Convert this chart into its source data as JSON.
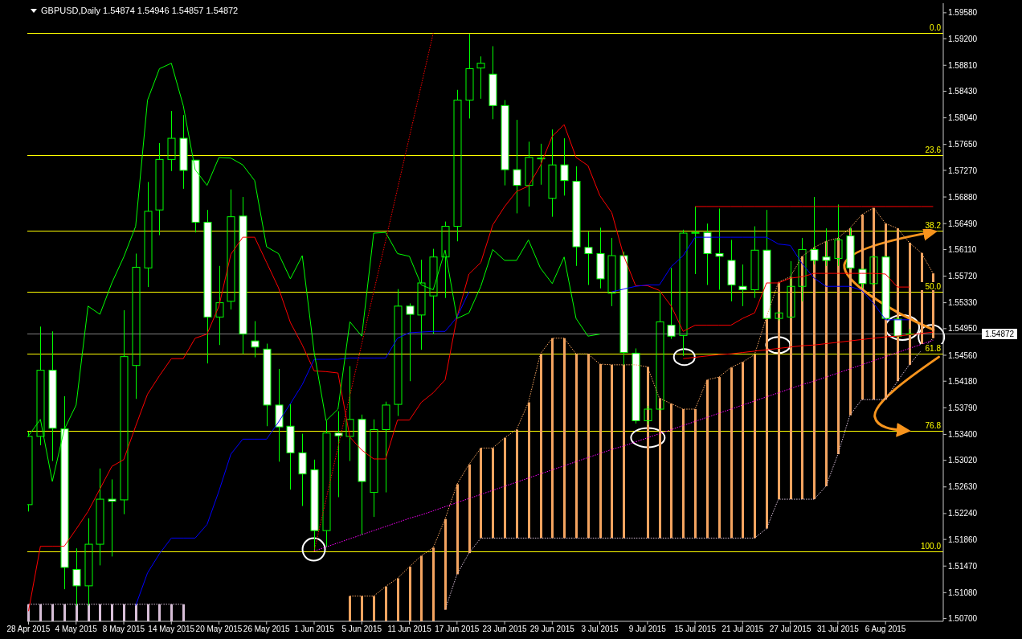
{
  "chart_data": {
    "type": "candlestick",
    "title": "GBPUSD,Daily 1.54874 1.54946 1.54857 1.54872",
    "color": "#00ff00",
    "categories": [
      "28 Apr 2015",
      null,
      null,
      null,
      "4 May 2015",
      null,
      null,
      null,
      "8 May 2015",
      null,
      null,
      null,
      "14 May 2015",
      null,
      null,
      null,
      "20 May 2015",
      null,
      null,
      null,
      "26 May 2015",
      null,
      null,
      null,
      "1 Jun 2015",
      null,
      null,
      null,
      "5 Jun 2015",
      null,
      null,
      null,
      "11 Jun 2015",
      null,
      null,
      null,
      "17 Jun 2015",
      null,
      null,
      null,
      "23 Jun 2015",
      null,
      null,
      null,
      "29 Jun 2015",
      null,
      null,
      null,
      "3 Jul 2015",
      null,
      null,
      null,
      "9 Jul 2015",
      null,
      null,
      null,
      "15 Jul 2015",
      null,
      null,
      null,
      "21 Jul 2015",
      null,
      null,
      null,
      "27 Jul 2015",
      null,
      null,
      null,
      "31 Jul 2015",
      null,
      null,
      null,
      "6 Aug 2015",
      null,
      null,
      null,
      null
    ],
    "ohlc": [
      [
        1.5237,
        1.5344,
        1.5227,
        1.5337
      ],
      [
        1.5337,
        1.5498,
        1.5324,
        1.5434
      ],
      [
        1.5434,
        1.5491,
        1.5301,
        1.5349
      ],
      [
        1.5348,
        1.5396,
        1.5113,
        1.5145
      ],
      [
        1.5142,
        1.5173,
        1.5089,
        1.5118
      ],
      [
        1.5118,
        1.5217,
        1.5089,
        1.5179
      ],
      [
        1.5179,
        1.529,
        1.5148,
        1.5245
      ],
      [
        1.5245,
        1.5274,
        1.5161,
        1.5242
      ],
      [
        1.5244,
        1.5522,
        1.5223,
        1.5454
      ],
      [
        1.5441,
        1.5605,
        1.5392,
        1.5585
      ],
      [
        1.5584,
        1.571,
        1.5556,
        1.5667
      ],
      [
        1.5669,
        1.5767,
        1.5632,
        1.5743
      ],
      [
        1.5743,
        1.5814,
        1.5726,
        1.5774
      ],
      [
        1.5774,
        1.5808,
        1.57,
        1.5727
      ],
      [
        1.5742,
        1.5743,
        1.5636,
        1.5651
      ],
      [
        1.5651,
        1.5669,
        1.5444,
        1.5512
      ],
      [
        1.5512,
        1.5587,
        1.5471,
        1.5533
      ],
      [
        1.5535,
        1.5699,
        1.5523,
        1.5659
      ],
      [
        1.566,
        1.5688,
        1.5458,
        1.5487
      ],
      [
        1.5477,
        1.5506,
        1.5453,
        1.5468
      ],
      [
        1.5465,
        1.5473,
        1.5352,
        1.5383
      ],
      [
        1.5383,
        1.5436,
        1.53,
        1.5351
      ],
      [
        1.5352,
        1.5385,
        1.5259,
        1.5313
      ],
      [
        1.5313,
        1.5341,
        1.5235,
        1.5282
      ],
      [
        1.5288,
        1.5303,
        1.5169,
        1.5199
      ],
      [
        1.5199,
        1.536,
        1.5175,
        1.5342
      ],
      [
        1.5342,
        1.5374,
        1.5248,
        1.5338
      ],
      [
        1.5337,
        1.544,
        1.5301,
        1.5362
      ],
      [
        1.5362,
        1.5369,
        1.5193,
        1.5271
      ],
      [
        1.5255,
        1.5362,
        1.5219,
        1.5347
      ],
      [
        1.5347,
        1.5388,
        1.5255,
        1.5383
      ],
      [
        1.5384,
        1.5553,
        1.5367,
        1.5528
      ],
      [
        1.5528,
        1.5532,
        1.5418,
        1.5516
      ],
      [
        1.5515,
        1.5596,
        1.5464,
        1.5562
      ],
      [
        1.5543,
        1.5612,
        1.5487,
        1.56
      ],
      [
        1.56,
        1.5652,
        1.554,
        1.5645
      ],
      [
        1.5645,
        1.5845,
        1.5623,
        1.583
      ],
      [
        1.583,
        1.5927,
        1.5803,
        1.5876
      ],
      [
        1.5877,
        1.5894,
        1.5832,
        1.5884
      ],
      [
        1.5868,
        1.5909,
        1.5802,
        1.5822
      ],
      [
        1.5822,
        1.583,
        1.5705,
        1.5728
      ],
      [
        1.5728,
        1.5801,
        1.5664,
        1.5705
      ],
      [
        1.5705,
        1.5769,
        1.5674,
        1.5746
      ],
      [
        1.5745,
        1.5766,
        1.5706,
        1.5745
      ],
      [
        1.5686,
        1.5787,
        1.5659,
        1.5735
      ],
      [
        1.5735,
        1.5774,
        1.569,
        1.5712
      ],
      [
        1.5711,
        1.5733,
        1.5587,
        1.5615
      ],
      [
        1.5614,
        1.5637,
        1.5559,
        1.5605
      ],
      [
        1.5605,
        1.5643,
        1.5554,
        1.5568
      ],
      [
        1.5547,
        1.5628,
        1.5528,
        1.5602
      ],
      [
        1.5602,
        1.5608,
        1.5441,
        1.546
      ],
      [
        1.5459,
        1.5466,
        1.5356,
        1.536
      ],
      [
        1.536,
        1.5382,
        1.5354,
        1.5377
      ],
      [
        1.5377,
        1.5549,
        1.5375,
        1.5505
      ],
      [
        1.55,
        1.5584,
        1.548,
        1.5484
      ],
      [
        1.5485,
        1.564,
        1.5455,
        1.5635
      ],
      [
        1.5635,
        1.5674,
        1.5575,
        1.5636
      ],
      [
        1.5636,
        1.5649,
        1.5559,
        1.5605
      ],
      [
        1.5605,
        1.5671,
        1.5552,
        1.5601
      ],
      [
        1.5595,
        1.5625,
        1.5535,
        1.5559
      ],
      [
        1.5557,
        1.5589,
        1.5528,
        1.5552
      ],
      [
        1.5552,
        1.5645,
        1.554,
        1.561
      ],
      [
        1.561,
        1.5669,
        1.5508,
        1.551
      ],
      [
        1.551,
        1.552,
        1.5507,
        1.5518
      ],
      [
        1.5512,
        1.5594,
        1.551,
        1.5557
      ],
      [
        1.5557,
        1.5628,
        1.5535,
        1.5611
      ],
      [
        1.5611,
        1.5688,
        1.5589,
        1.5595
      ],
      [
        1.56,
        1.5642,
        1.5587,
        1.5595
      ],
      [
        1.5598,
        1.5677,
        1.5587,
        1.5625
      ],
      [
        1.5631,
        1.5643,
        1.5582,
        1.5584
      ],
      [
        1.5582,
        1.5583,
        1.5555,
        1.5561
      ],
      [
        1.5561,
        1.5602,
        1.5559,
        1.56
      ],
      [
        1.56,
        1.5602,
        1.5508,
        1.551
      ],
      [
        1.5509,
        1.5512,
        1.5482,
        1.5484
      ],
      [
        1.54874,
        1.54946,
        1.54857,
        1.54872
      ],
      null,
      null
    ],
    "ylim": [
      1.5066,
      1.5972
    ],
    "yticks": [
      {
        "value": 1.5958,
        "label": "1.59580"
      },
      {
        "value": 1.592,
        "label": "1.59200"
      },
      {
        "value": 1.5881,
        "label": "1.58810"
      },
      {
        "value": 1.5843,
        "label": "1.58430"
      },
      {
        "value": 1.5804,
        "label": "1.58040"
      },
      {
        "value": 1.5765,
        "label": "1.57650"
      },
      {
        "value": 1.5727,
        "label": "1.57270"
      },
      {
        "value": 1.5688,
        "label": "1.56880"
      },
      {
        "value": 1.5649,
        "label": "1.56490"
      },
      {
        "value": 1.5611,
        "label": "1.56110"
      },
      {
        "value": 1.5572,
        "label": "1.55720"
      },
      {
        "value": 1.5533,
        "label": "1.55330"
      },
      {
        "value": 1.5495,
        "label": "1.54950"
      },
      {
        "value": 1.5456,
        "label": "1.54560"
      },
      {
        "value": 1.5418,
        "label": "1.54180"
      },
      {
        "value": 1.5379,
        "label": "1.53790"
      },
      {
        "value": 1.534,
        "label": "1.53400"
      },
      {
        "value": 1.5302,
        "label": "1.53020"
      },
      {
        "value": 1.5263,
        "label": "1.52630"
      },
      {
        "value": 1.5224,
        "label": "1.52240"
      },
      {
        "value": 1.5186,
        "label": "1.51860"
      },
      {
        "value": 1.5147,
        "label": "1.51470"
      },
      {
        "value": 1.5108,
        "label": "1.51080"
      },
      {
        "value": 1.507,
        "label": "1.50700"
      }
    ],
    "series": [
      {
        "type": "bar",
        "base": [
          1.5066,
          1.5066,
          1.5066,
          1.5066,
          1.5066,
          1.5066,
          1.5066,
          1.5066,
          1.5066,
          1.5066,
          1.5066,
          1.5066,
          1.5066,
          1.5066,
          null,
          null,
          null,
          null,
          null,
          null,
          null,
          null,
          null,
          null,
          null,
          null,
          null,
          1.5066,
          1.5066,
          1.5066,
          1.5066,
          1.5066,
          1.5066,
          1.5066,
          1.5066,
          1.5083,
          1.5135,
          1.5166,
          1.5188,
          1.5188,
          1.5188,
          1.5188,
          1.5188,
          1.5188,
          1.5188,
          1.5188,
          1.5188,
          1.5188,
          1.5188,
          1.5188,
          1.5188,
          null,
          1.5188,
          1.5188,
          1.5188,
          1.5188,
          1.5188,
          1.5188,
          1.5188,
          1.5188,
          1.5188,
          1.5188,
          1.5202,
          1.5245,
          1.5245,
          1.5245,
          1.5245,
          1.5264,
          1.5311,
          1.5368,
          1.5391,
          1.5391,
          1.5391,
          1.5418,
          1.5442,
          1.5463,
          1.5481
        ],
        "values": [
          0.0025,
          0.0025,
          0.0025,
          0.0025,
          0.0025,
          0.0025,
          0.0025,
          0.0025,
          0.0025,
          0.0025,
          0.0025,
          0.0025,
          0.0025,
          0.0025,
          null,
          null,
          null,
          null,
          null,
          null,
          null,
          null,
          null,
          null,
          null,
          null,
          null,
          0.0037,
          0.0037,
          0.0037,
          0.0051,
          0.0063,
          0.008,
          0.0096,
          0.0108,
          0.0133,
          0.0132,
          0.013,
          0.0132,
          0.0132,
          0.0147,
          0.0159,
          0.0199,
          0.027,
          0.0293,
          0.0293,
          0.027,
          0.027,
          0.0255,
          0.0254,
          0.0254,
          null,
          0.0251,
          0.0205,
          0.0197,
          0.0189,
          0.0189,
          0.0232,
          0.0236,
          0.025,
          0.0258,
          0.0269,
          0.031,
          0.0318,
          0.0326,
          0.0356,
          0.0369,
          0.0359,
          0.0317,
          0.0274,
          0.0271,
          0.0281,
          0.0258,
          0.0224,
          0.0179,
          0.0143,
          0.0095
        ],
        "colors": [
          "#d8bfd8",
          "#d8bfd8",
          "#d8bfd8",
          "#d8bfd8",
          "#d8bfd8",
          "#d8bfd8",
          "#d8bfd8",
          "#d8bfd8",
          "#d8bfd8",
          "#d8bfd8",
          "#d8bfd8",
          "#d8bfd8",
          "#d8bfd8",
          "#d8bfd8",
          null,
          null,
          null,
          null,
          null,
          null,
          null,
          null,
          null,
          null,
          null,
          null,
          null,
          "#f4a460",
          "#f4a460",
          "#f4a460",
          "#f4a460",
          "#f4a460",
          "#f4a460",
          "#f4a460",
          "#f4a460",
          "#f4a460",
          "#f4a460",
          "#f4a460",
          "#f4a460",
          "#f4a460",
          "#f4a460",
          "#f4a460",
          "#f4a460",
          "#f4a460",
          "#f4a460",
          "#f4a460",
          "#f4a460",
          "#f4a460",
          "#f4a460",
          "#f4a460",
          "#f4a460",
          null,
          "#f4a460",
          "#f4a460",
          "#f4a460",
          "#f4a460",
          "#f4a460",
          "#f4a460",
          "#f4a460",
          "#f4a460",
          "#f4a460",
          "#f4a460",
          "#f4a460",
          "#f4a460",
          "#f4a460",
          "#f4a460",
          "#f4a460",
          "#f4a460",
          "#f4a460",
          "#f4a460",
          "#f4a460",
          "#f4a460",
          "#f4a460",
          "#f4a460",
          "#f4a460",
          "#f4a460",
          "#f4a460"
        ]
      },
      {
        "type": "line",
        "color": "#f4a460",
        "line_style": "dotted",
        "values": [
          null,
          null,
          null,
          null,
          null,
          null,
          null,
          null,
          null,
          null,
          null,
          null,
          null,
          null,
          null,
          null,
          null,
          null,
          null,
          null,
          null,
          null,
          null,
          null,
          null,
          null,
          null,
          1.5103,
          1.5103,
          1.5103,
          1.5117,
          1.5129,
          1.5146,
          1.5162,
          1.5174,
          1.5216,
          1.5267,
          1.5296,
          1.532,
          1.532,
          1.5335,
          1.5347,
          1.5387,
          1.5458,
          1.5481,
          1.5481,
          1.5458,
          1.5458,
          1.5443,
          1.5442,
          1.5442,
          1.5442,
          1.5439,
          1.5393,
          1.5385,
          1.5377,
          1.5377,
          1.542,
          1.5424,
          1.5438,
          1.5446,
          1.5457,
          1.5512,
          1.5563,
          1.5571,
          1.5601,
          1.5614,
          1.5623,
          1.5628,
          1.5642,
          1.5662,
          1.5672,
          1.5649,
          1.5642,
          1.5621,
          1.5606,
          1.5576
        ]
      },
      {
        "type": "line",
        "color": "#d8bfd8",
        "line_style": "dotted",
        "values": [
          1.5091,
          1.5091,
          1.5091,
          1.5091,
          1.5091,
          1.5091,
          1.5091,
          1.5091,
          1.5091,
          1.5091,
          1.5091,
          1.5091,
          1.5091,
          1.5091,
          null,
          null,
          null,
          null,
          null,
          null,
          null,
          null,
          null,
          null,
          null,
          null,
          null,
          null,
          null,
          null,
          null,
          null,
          null,
          null,
          null,
          1.5083,
          1.5135,
          1.5166,
          1.5188,
          1.5188,
          1.5188,
          1.5188,
          1.5188,
          1.5188,
          1.5188,
          1.5188,
          1.5188,
          1.5188,
          1.5188,
          1.5188,
          1.5188,
          1.5188,
          1.5188,
          1.5188,
          1.5188,
          1.5188,
          1.5188,
          1.5188,
          1.5188,
          1.5188,
          1.5188,
          1.5188,
          1.5202,
          1.5245,
          1.5245,
          1.5245,
          1.5245,
          1.5264,
          1.5311,
          1.5368,
          1.5391,
          1.5391,
          1.5391,
          1.5418,
          1.5442,
          1.5463,
          1.5481
        ]
      },
      {
        "type": "line",
        "color": "#ff0000",
        "values": [
          1.5081,
          1.5176,
          1.5176,
          1.5176,
          1.5201,
          1.5227,
          1.526,
          1.5293,
          1.5303,
          1.5352,
          1.5399,
          1.5426,
          1.5451,
          1.5451,
          1.5481,
          1.5487,
          1.5528,
          1.5604,
          1.5629,
          1.5629,
          1.5592,
          1.5555,
          1.5504,
          1.5471,
          1.5433,
          1.5432,
          1.543,
          1.5336,
          1.5317,
          1.5304,
          1.5304,
          1.5361,
          1.5361,
          1.5387,
          1.5401,
          1.542,
          1.5512,
          1.5575,
          1.5592,
          1.5647,
          1.5674,
          1.5696,
          1.5704,
          1.5734,
          1.5777,
          1.5794,
          1.5746,
          1.5734,
          1.569,
          1.5665,
          1.5602,
          1.5558,
          1.5558,
          1.5551,
          1.5528,
          1.5491,
          1.55,
          1.55,
          1.55,
          1.55,
          1.551,
          1.5518,
          1.5562,
          1.5562,
          1.5569,
          1.5571,
          1.5576,
          1.5576,
          1.5576,
          1.5576,
          1.5576,
          1.5576,
          1.5575,
          1.5556,
          1.5556,
          null,
          null
        ]
      },
      {
        "type": "line",
        "color": "#0000ff",
        "values": [
          null,
          null,
          null,
          null,
          null,
          null,
          null,
          null,
          null,
          1.5089,
          1.5137,
          1.5165,
          1.5188,
          1.5188,
          1.5188,
          1.5208,
          1.5257,
          1.5311,
          1.5333,
          1.5333,
          1.5333,
          1.5358,
          1.5385,
          1.5413,
          1.545,
          1.545,
          1.545,
          1.5452,
          1.5452,
          1.5452,
          1.5452,
          1.5481,
          1.5489,
          1.549,
          1.5491,
          1.5491,
          1.5512,
          1.5549,
          null,
          null,
          null,
          null,
          null,
          null,
          null,
          null,
          null,
          null,
          null,
          1.5549,
          1.5553,
          1.5557,
          1.5559,
          1.5559,
          1.5586,
          1.5602,
          1.5629,
          1.5629,
          1.5629,
          1.5629,
          1.5629,
          1.5629,
          1.5629,
          1.5619,
          1.5617,
          1.559,
          1.5569,
          1.5557,
          1.5557,
          1.5557,
          1.5551,
          1.5532,
          1.5508,
          1.5508,
          1.5508,
          null,
          null
        ]
      },
      {
        "type": "line",
        "color": "#00ff00",
        "values": [
          1.5338,
          1.5362,
          1.5271,
          1.5347,
          1.5383,
          1.5528,
          1.5516,
          1.5562,
          1.56,
          1.5645,
          1.583,
          1.5876,
          1.5884,
          1.5822,
          1.5728,
          1.5705,
          1.5746,
          1.5745,
          1.5735,
          1.5712,
          1.5615,
          1.5605,
          1.5568,
          1.5602,
          1.546,
          1.536,
          1.5377,
          1.5505,
          1.5484,
          1.5635,
          1.5636,
          1.5605,
          1.5601,
          1.5559,
          1.5552,
          1.561,
          1.551,
          1.5518,
          1.5557,
          1.5611,
          1.5595,
          1.5595,
          1.5625,
          1.5584,
          1.5561,
          1.56,
          1.551,
          1.5484,
          1.5487,
          null,
          null,
          null,
          null,
          null,
          null,
          null,
          null,
          null,
          null,
          null,
          null,
          null,
          null,
          null,
          null,
          null,
          null,
          null,
          null,
          null,
          null,
          null,
          null,
          null,
          null,
          null,
          null
        ]
      },
      {
        "type": "line",
        "color": "#ff0000",
        "line_style": "dotted",
        "values": [
          null,
          null,
          null,
          null,
          null,
          null,
          null,
          null,
          null,
          null,
          null,
          null,
          null,
          null,
          null,
          null,
          null,
          null,
          null,
          null,
          null,
          null,
          null,
          null,
          1.5169,
          1.5245,
          1.5321,
          1.5397,
          1.5473,
          1.5549,
          1.5624,
          1.57,
          1.5776,
          1.5852,
          1.5928,
          null,
          null,
          null,
          null,
          null,
          null,
          null,
          null,
          null,
          null,
          null,
          null,
          null,
          null,
          null,
          null,
          null,
          null,
          null,
          null,
          null,
          null,
          null,
          null,
          null,
          null,
          null,
          null,
          null,
          null,
          null,
          null,
          null,
          null,
          null,
          null,
          null,
          null,
          null,
          null,
          null,
          null
        ]
      },
      {
        "type": "line",
        "color": "#ff00ff",
        "line_style": "dotted",
        "values": [
          null,
          null,
          null,
          null,
          null,
          null,
          null,
          null,
          null,
          null,
          null,
          null,
          null,
          null,
          null,
          null,
          null,
          null,
          null,
          null,
          null,
          null,
          null,
          null,
          1.5169,
          1.5175,
          1.5181,
          1.5187,
          1.5193,
          1.5199,
          1.5205,
          1.5211,
          1.5217,
          1.5222,
          1.5228,
          1.5234,
          1.524,
          1.5246,
          1.5252,
          1.5258,
          1.5264,
          1.527,
          1.5276,
          1.5282,
          1.5288,
          1.5294,
          1.53,
          1.5306,
          1.5312,
          1.5318,
          1.5323,
          1.5329,
          1.5335,
          1.5341,
          1.5347,
          1.5353,
          1.5359,
          1.5365,
          1.5371,
          1.5377,
          1.5383,
          1.5389,
          1.5395,
          1.5401,
          1.5407,
          1.5413,
          1.5418,
          1.5424,
          1.543,
          1.5436,
          1.5442,
          1.5448,
          1.5454,
          1.546,
          1.5466,
          1.5472,
          1.5478
        ]
      },
      {
        "type": "line",
        "color": "#ff0000",
        "values": [
          null,
          null,
          null,
          null,
          null,
          null,
          null,
          null,
          null,
          null,
          null,
          null,
          null,
          null,
          null,
          null,
          null,
          null,
          null,
          null,
          null,
          null,
          null,
          null,
          null,
          null,
          null,
          null,
          null,
          null,
          null,
          null,
          null,
          null,
          null,
          null,
          null,
          null,
          null,
          null,
          null,
          null,
          null,
          null,
          null,
          null,
          null,
          null,
          null,
          null,
          null,
          null,
          null,
          null,
          null,
          1.5451,
          1.5453,
          1.5455,
          1.5457,
          1.5458,
          1.546,
          1.5462,
          1.5464,
          1.5466,
          1.5468,
          1.547,
          1.5471,
          1.5473,
          1.5475,
          1.5477,
          1.5479,
          1.5481,
          1.5483,
          1.5484,
          1.5486,
          1.5488,
          1.549
        ]
      },
      {
        "type": "line",
        "color": "#ff0000",
        "values": [
          null,
          null,
          null,
          null,
          null,
          null,
          null,
          null,
          null,
          null,
          null,
          null,
          null,
          null,
          null,
          null,
          null,
          null,
          null,
          null,
          null,
          null,
          null,
          null,
          null,
          null,
          null,
          null,
          null,
          null,
          null,
          null,
          null,
          null,
          null,
          null,
          null,
          null,
          null,
          null,
          null,
          null,
          null,
          null,
          null,
          null,
          null,
          null,
          null,
          null,
          null,
          null,
          null,
          null,
          null,
          null,
          1.5674,
          1.5674,
          1.5674,
          1.5674,
          1.5674,
          1.5674,
          1.5674,
          1.5674,
          1.5674,
          1.5674,
          1.5674,
          1.5674,
          1.5674,
          1.5674,
          1.5674,
          1.5674,
          1.5674,
          1.5674,
          1.5674,
          1.5674,
          1.5674
        ]
      }
    ],
    "ref_lines": [
      {
        "axis": "y",
        "value": 1.5928,
        "color": "#ffff00"
      },
      {
        "axis": "y",
        "value": 1.5749,
        "color": "#ffff00"
      },
      {
        "axis": "y",
        "value": 1.5638,
        "color": "#ffff00"
      },
      {
        "axis": "y",
        "value": 1.5549,
        "color": "#ffff00"
      },
      {
        "axis": "y",
        "value": 1.5458,
        "color": "#ffff00"
      },
      {
        "axis": "y",
        "value": 1.5345,
        "color": "#ffff00"
      },
      {
        "axis": "y",
        "value": 1.5169,
        "color": "#ffff00"
      },
      {
        "axis": "y",
        "value": 1.54872,
        "label": "1.54872",
        "color": "#808080"
      }
    ],
    "annotations": [
      {
        "text": "0.0",
        "y": 1.5928
      },
      {
        "text": "23.6",
        "y": 1.5749
      },
      {
        "text": "38.2",
        "y": 1.5638
      },
      {
        "text": "50.0",
        "y": 1.5549
      },
      {
        "text": "61.8",
        "y": 1.5458
      },
      {
        "text": "76.8",
        "y": 1.5345
      },
      {
        "text": "100.0",
        "y": 1.5169
      }
    ]
  }
}
